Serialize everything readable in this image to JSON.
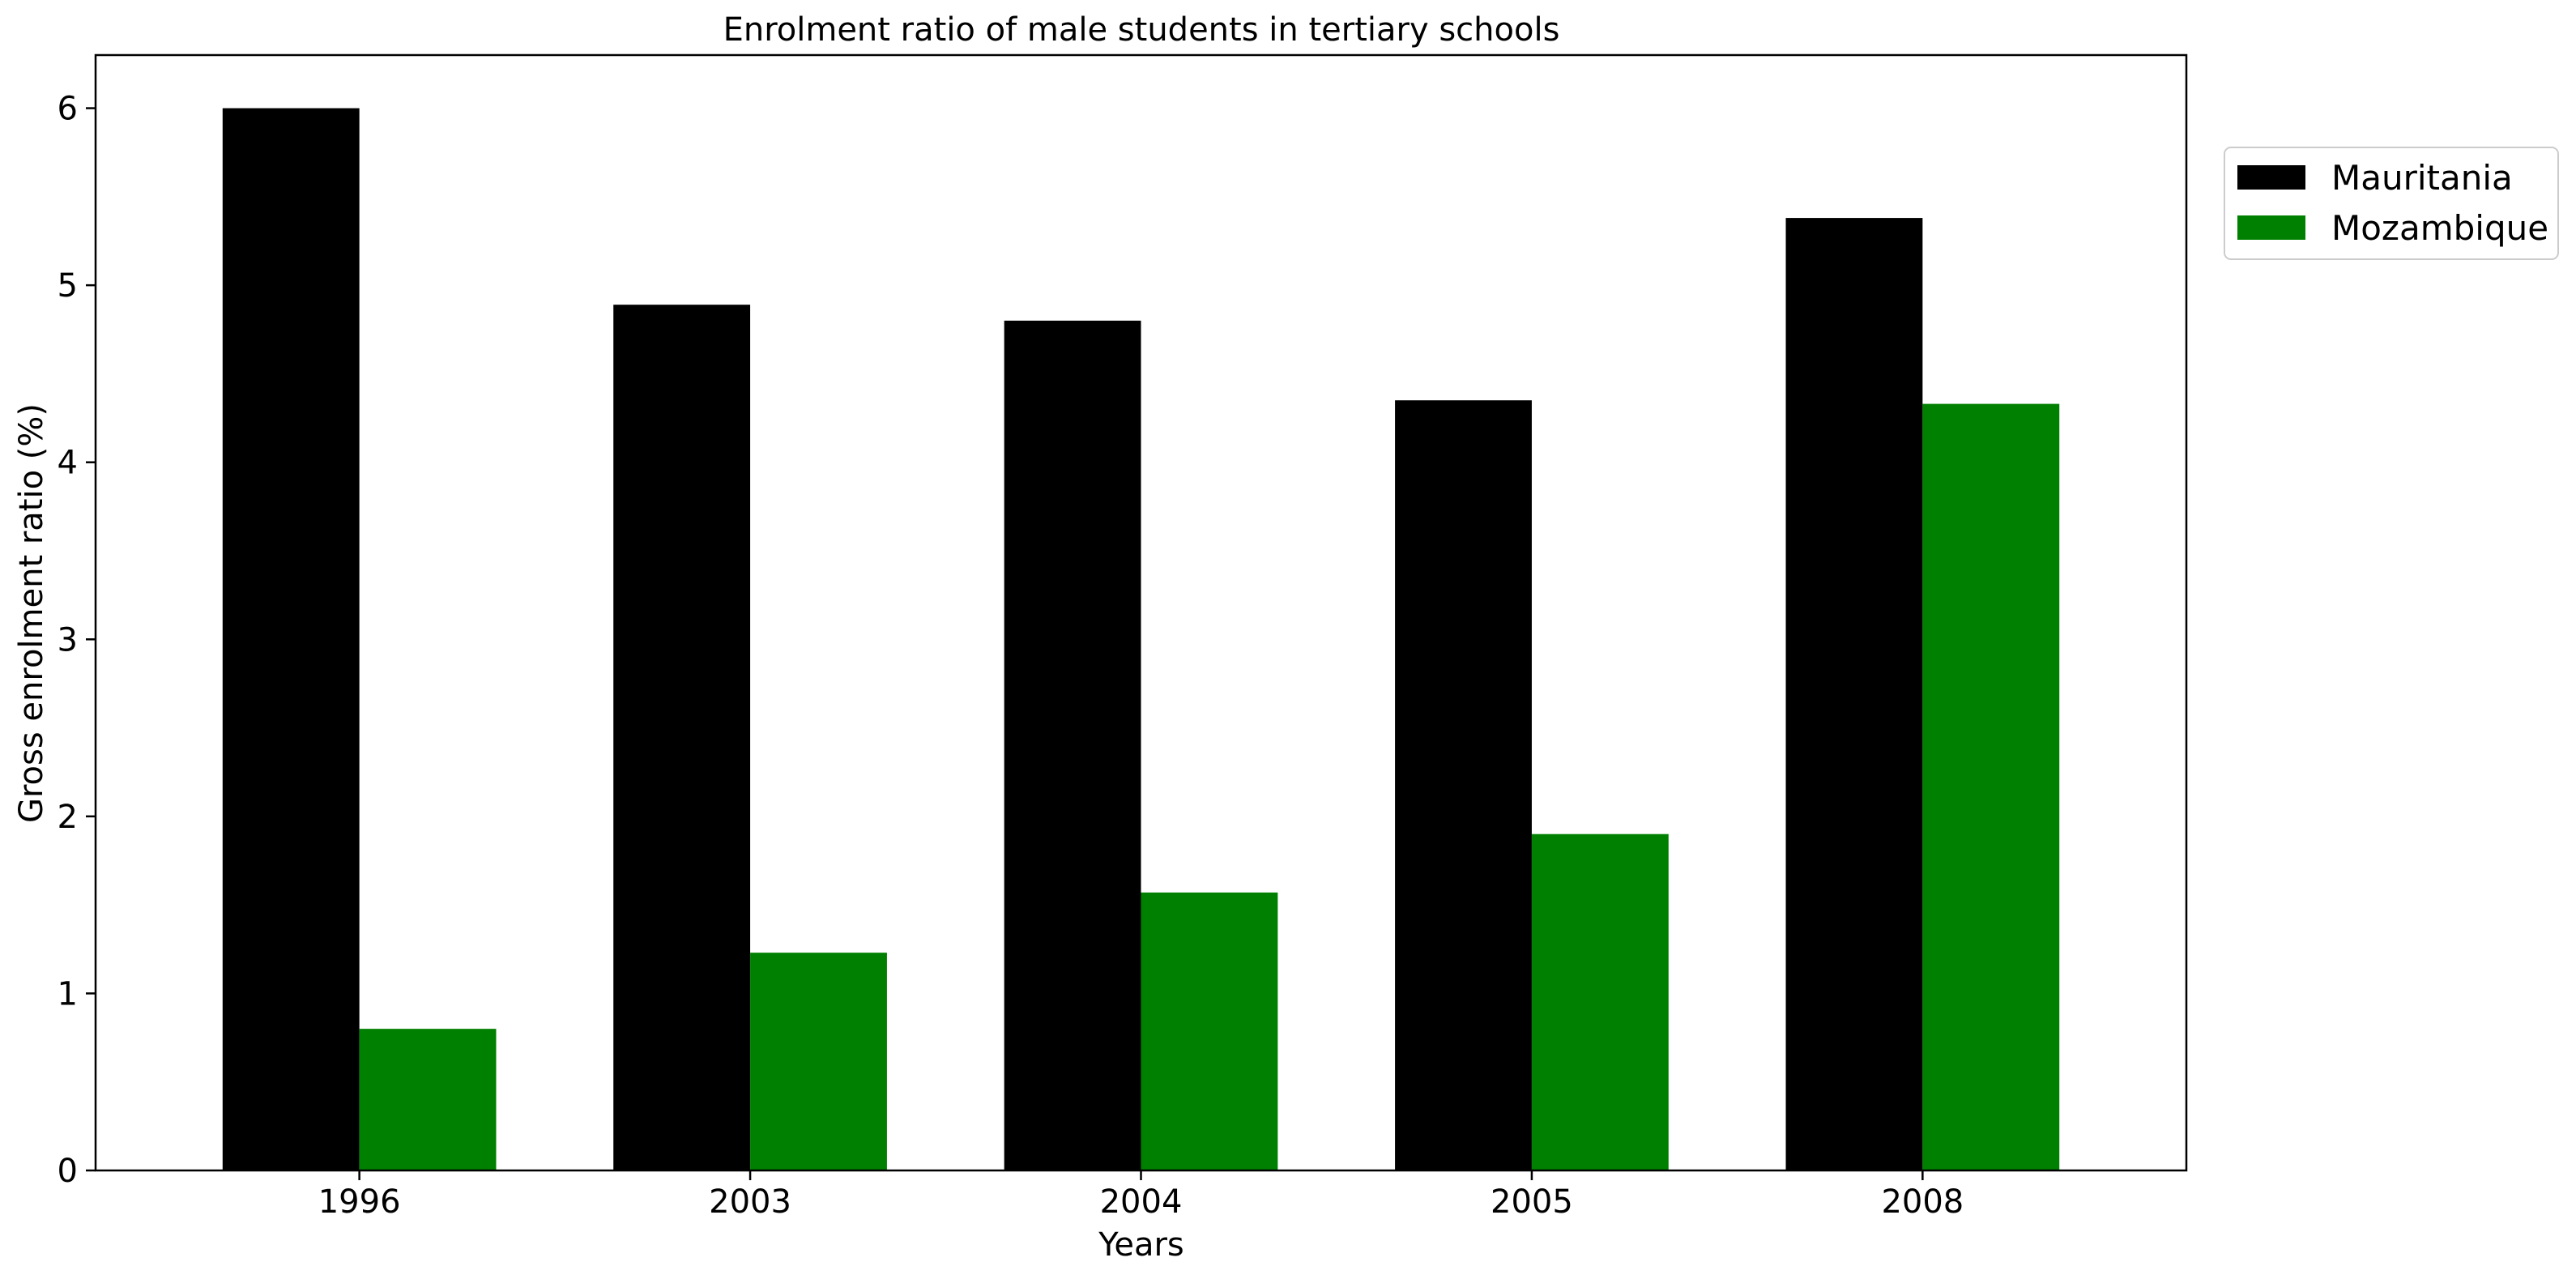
{
  "chart_data": {
    "type": "bar",
    "title": "Enrolment ratio of male students in tertiary schools",
    "xlabel": "Years",
    "ylabel": "Gross enrolment ratio (%)",
    "categories": [
      "1996",
      "2003",
      "2004",
      "2005",
      "2008"
    ],
    "series": [
      {
        "name": "Mauritania",
        "color": "#000000",
        "values": [
          6.0,
          4.89,
          4.8,
          4.35,
          5.38
        ]
      },
      {
        "name": "Mozambique",
        "color": "#008000",
        "values": [
          0.8,
          1.23,
          1.57,
          1.9,
          4.33
        ]
      }
    ],
    "ylim": [
      0,
      6.3
    ],
    "yticks": [
      0,
      1,
      2,
      3,
      4,
      5,
      6
    ],
    "grid": false,
    "legend_position": "outside-top-right"
  }
}
